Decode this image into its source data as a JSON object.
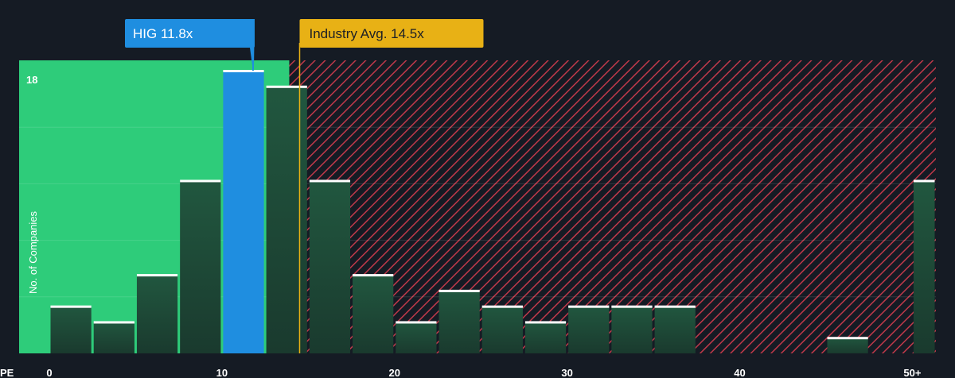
{
  "chart_data": {
    "type": "bar",
    "title": "",
    "xlabel": "PE",
    "ylabel": "No. of Companies",
    "x_ticks": [
      "0",
      "10",
      "20",
      "30",
      "40",
      "50+"
    ],
    "x_tick_values": [
      0,
      10,
      20,
      30,
      40,
      50
    ],
    "xlim": [
      0,
      51.5
    ],
    "ylim": [
      0,
      18
    ],
    "y_ticks": [
      "18"
    ],
    "bin_width": 2.5,
    "bins": [
      {
        "x0": 0,
        "x1": 2.5,
        "value": 3
      },
      {
        "x0": 2.5,
        "x1": 5,
        "value": 2
      },
      {
        "x0": 5,
        "x1": 7.5,
        "value": 5
      },
      {
        "x0": 7.5,
        "x1": 10,
        "value": 11
      },
      {
        "x0": 10,
        "x1": 12.5,
        "value": 18,
        "highlight": true
      },
      {
        "x0": 12.5,
        "x1": 15,
        "value": 17
      },
      {
        "x0": 15,
        "x1": 17.5,
        "value": 11
      },
      {
        "x0": 17.5,
        "x1": 20,
        "value": 5
      },
      {
        "x0": 20,
        "x1": 22.5,
        "value": 2
      },
      {
        "x0": 22.5,
        "x1": 25,
        "value": 4
      },
      {
        "x0": 25,
        "x1": 27.5,
        "value": 3
      },
      {
        "x0": 27.5,
        "x1": 30,
        "value": 2
      },
      {
        "x0": 30,
        "x1": 32.5,
        "value": 3
      },
      {
        "x0": 32.5,
        "x1": 35,
        "value": 3
      },
      {
        "x0": 35,
        "x1": 37.5,
        "value": 3
      },
      {
        "x0": 37.5,
        "x1": 40,
        "value": 0
      },
      {
        "x0": 40,
        "x1": 42.5,
        "value": 0
      },
      {
        "x0": 42.5,
        "x1": 45,
        "value": 0
      },
      {
        "x0": 45,
        "x1": 47.5,
        "value": 1
      },
      {
        "x0": 47.5,
        "x1": 50,
        "value": 0
      },
      {
        "x0": 50,
        "x1": 51.5,
        "value": 11
      }
    ],
    "company": {
      "label": "HIG 11.8x",
      "value": 11.8
    },
    "industry": {
      "label": "Industry Avg. 14.5x",
      "value": 14.5
    },
    "grid": true,
    "colors": {
      "background": "#151b24",
      "undervalued_zone": "#2ecc7a",
      "overvalued_hatch": "#c0394a",
      "bar": "#1f4a38",
      "highlight_bar": "#1f8ee0",
      "bar_top": "#ffffff",
      "company_callout": "#1f8ee0",
      "industry_callout": "#e8b115"
    }
  }
}
